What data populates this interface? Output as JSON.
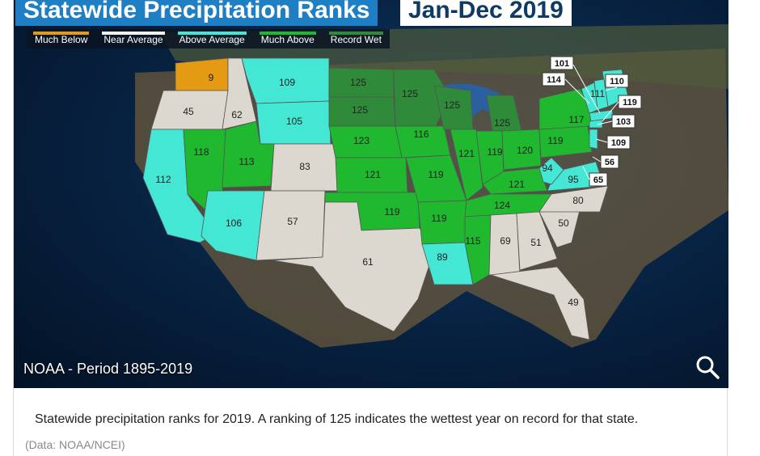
{
  "title": "Statewide Precipitation Ranks",
  "subtitle": "Jan-Dec 2019",
  "credit": "NOAA - Period 1895-2019",
  "caption": "Statewide precipitation ranks for 2019. A ranking of 125 indicates the wettest year on record for that state.",
  "source": "(Data: NOAA/NCEI)",
  "colors": {
    "much_below": "#e59a13",
    "near_average": "#dcd8cf",
    "above_average": "#44e7d3",
    "much_above": "#1fb82f",
    "record_wet": "#2f8a3a"
  },
  "legend": [
    {
      "label": "Much Below",
      "color": "#e59a13"
    },
    {
      "label": "Near Average",
      "color": "#f2f0ea"
    },
    {
      "label": "Above Average",
      "color": "#44e7d3"
    },
    {
      "label": "Much Above",
      "color": "#1fb82f"
    },
    {
      "label": "Record Wet",
      "color": "#2f8a3a"
    }
  ],
  "states": {
    "wa": "9",
    "or": "45",
    "id": "62",
    "mt": "109",
    "wy": "105",
    "ca": "112",
    "nv": "118",
    "ut": "113",
    "co": "83",
    "az": "106",
    "nm": "57",
    "nd": "125",
    "sd": "125",
    "ne": "123",
    "ks": "121",
    "ok": "119",
    "tx": "61",
    "mn": "125",
    "ia": "116",
    "mo": "119",
    "ar": "119",
    "la": "89",
    "wi": "125",
    "il": "121",
    "mi": "125",
    "in": "119",
    "oh": "120",
    "ky": "121",
    "tn": "124",
    "ms": "115",
    "al": "69",
    "ga": "51",
    "fl": "49",
    "sc": "50",
    "nc": "80",
    "va": "95",
    "wv": "94",
    "pa": "119",
    "ny": "117",
    "me": "110",
    "nh": "111",
    "vt": "114",
    "ma": "101",
    "ri": "119",
    "ct": "103",
    "nj": "109",
    "de": "56",
    "md": "65"
  }
}
